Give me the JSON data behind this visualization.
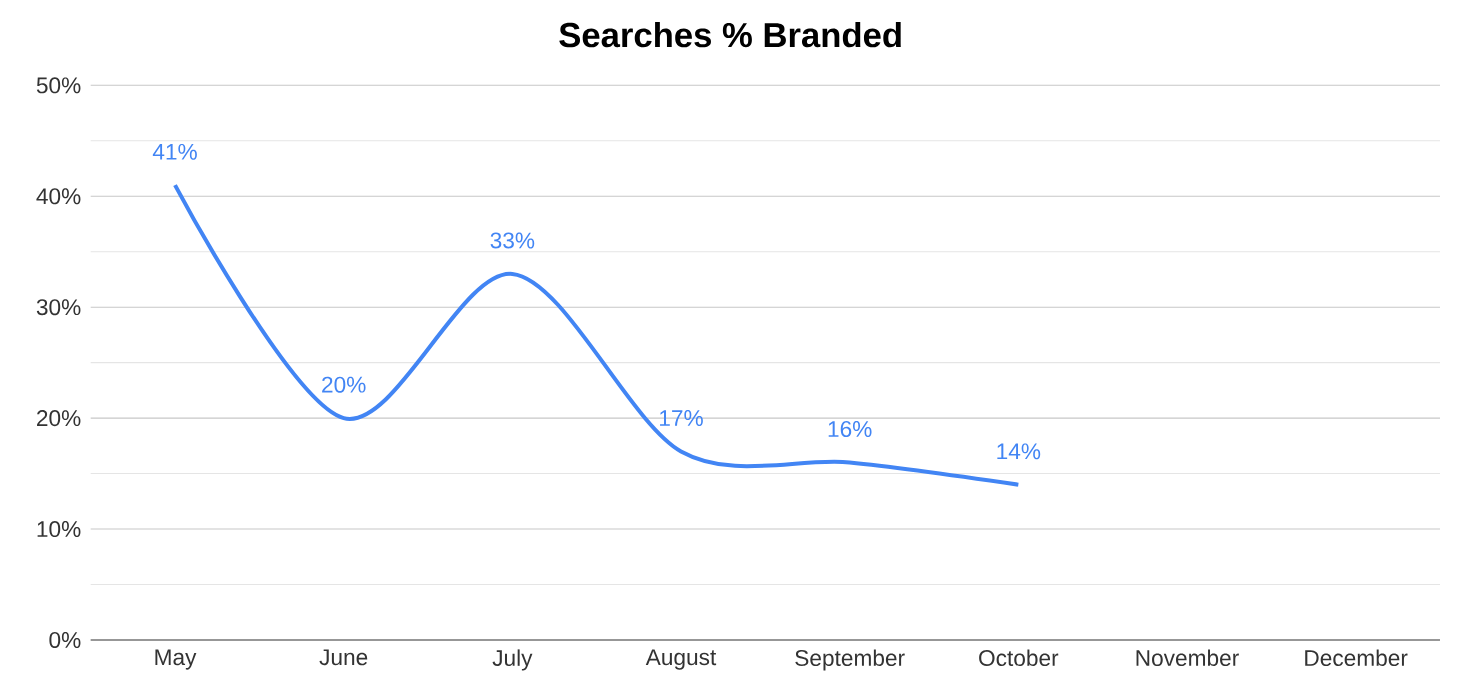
{
  "chart_data": {
    "type": "line",
    "title": "Searches % Branded",
    "categories": [
      "May",
      "June",
      "July",
      "August",
      "September",
      "October",
      "November",
      "December"
    ],
    "series": [
      {
        "color": "#4285f4",
        "values": [
          41,
          20,
          33,
          17,
          16,
          14,
          null,
          null
        ],
        "value_labels": [
          "41%",
          "20%",
          "33%",
          "17%",
          "16%",
          "14%",
          null,
          null
        ]
      }
    ],
    "ylim": [
      0,
      50
    ],
    "yticks": [
      {
        "value": 0,
        "label": "0%"
      },
      {
        "value": 5,
        "label": null
      },
      {
        "value": 10,
        "label": "10%"
      },
      {
        "value": 15,
        "label": null
      },
      {
        "value": 20,
        "label": "20%"
      },
      {
        "value": 25,
        "label": null
      },
      {
        "value": 30,
        "label": "30%"
      },
      {
        "value": 35,
        "label": null
      },
      {
        "value": 40,
        "label": "40%"
      },
      {
        "value": 45,
        "label": null
      },
      {
        "value": 50,
        "label": "50%"
      }
    ],
    "grid": true,
    "marker": "none",
    "line_style": "solid"
  }
}
